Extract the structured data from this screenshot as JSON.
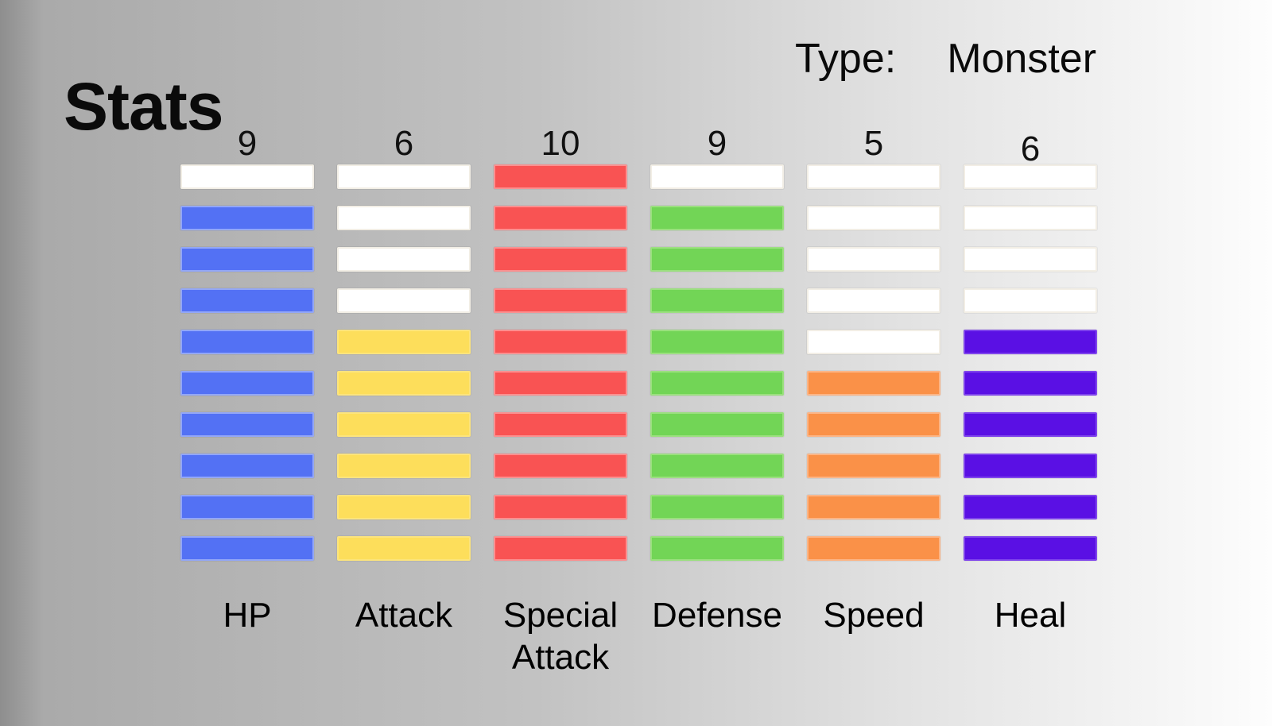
{
  "title": "Stats",
  "type": {
    "label": "Type:",
    "value": "Monster"
  },
  "chart_data": {
    "type": "bar",
    "title": "Stats",
    "categories": [
      "HP",
      "Attack",
      "Special Attack",
      "Defense",
      "Speed",
      "Heal"
    ],
    "values": [
      9,
      6,
      10,
      9,
      5,
      6
    ],
    "ylim": [
      0,
      10
    ],
    "segments_per_column": 10,
    "legend": "none",
    "orientation": "vertical-segmented",
    "value_labels_position": "above-columns",
    "category_labels_position": "below-columns"
  },
  "columns": [
    {
      "id": "hp",
      "label": "HP",
      "value": 9,
      "fill": "#5371f4",
      "border": "#93a7f7"
    },
    {
      "id": "attack",
      "label": "Attack",
      "value": 6,
      "fill": "#fdde5b",
      "border": "#fce47d"
    },
    {
      "id": "special-attack",
      "label": "Special Attack",
      "value": 10,
      "fill": "#f95353",
      "border": "#fb9090"
    },
    {
      "id": "defense",
      "label": "Defense",
      "value": 9,
      "fill": "#72d556",
      "border": "#9be07f"
    },
    {
      "id": "speed",
      "label": "Speed",
      "value": 5,
      "fill": "#fa9148",
      "border": "#fcb586"
    },
    {
      "id": "heal",
      "label": "Heal",
      "value": 6,
      "fill": "#5a10e4",
      "border": "#7f44ec"
    }
  ],
  "empty_cell": {
    "fill": "#ffffff",
    "border": "#f2eee5"
  },
  "background": {
    "left": "#8e8e8e",
    "right": "#fdfdfd"
  }
}
